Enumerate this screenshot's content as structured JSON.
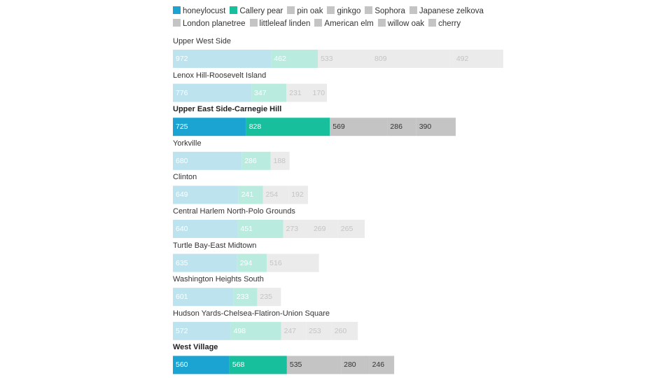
{
  "legend": [
    {
      "name": "honeylocust",
      "color": "#1ba3d1"
    },
    {
      "name": "Callery pear",
      "color": "#17bf9c"
    },
    {
      "name": "pin oak",
      "color": "#c4c4c4"
    },
    {
      "name": "ginkgo",
      "color": "#c4c4c4"
    },
    {
      "name": "Sophora",
      "color": "#c4c4c4"
    },
    {
      "name": "Japanese zelkova",
      "color": "#c4c4c4"
    },
    {
      "name": "London planetree",
      "color": "#c4c4c4"
    },
    {
      "name": "littleleaf linden",
      "color": "#c4c4c4"
    },
    {
      "name": "American elm",
      "color": "#c4c4c4"
    },
    {
      "name": "willow oak",
      "color": "#c4c4c4"
    },
    {
      "name": "cherry",
      "color": "#c4c4c4"
    }
  ],
  "colors": {
    "first_highlight": "#1ba3d1",
    "second_highlight": "#17bf9c",
    "other_highlight": "#c4c4c4",
    "first_faded": "#bde3ef",
    "second_faded": "#b9ecdf",
    "other_faded": "#ebebeb"
  },
  "chart_data": {
    "type": "bar",
    "orientation": "horizontal",
    "stacked": true,
    "title": "",
    "xlabel": "",
    "ylabel": "",
    "rows": [
      {
        "name": "Upper West Side",
        "highlighted": false,
        "values": [
          972,
          462,
          533,
          809,
          492
        ]
      },
      {
        "name": "Lenox Hill-Roosevelt Island",
        "highlighted": false,
        "values": [
          776,
          347,
          231,
          170
        ]
      },
      {
        "name": "Upper East Side-Carnegie Hill",
        "highlighted": true,
        "values": [
          725,
          828,
          569,
          286,
          390
        ]
      },
      {
        "name": "Yorkville",
        "highlighted": false,
        "values": [
          680,
          286,
          188
        ]
      },
      {
        "name": "Clinton",
        "highlighted": false,
        "values": [
          649,
          241,
          254,
          192
        ]
      },
      {
        "name": "Central Harlem North-Polo Grounds",
        "highlighted": false,
        "values": [
          640,
          451,
          273,
          269,
          265
        ]
      },
      {
        "name": "Turtle Bay-East Midtown",
        "highlighted": false,
        "values": [
          635,
          294,
          516
        ]
      },
      {
        "name": "Washington Heights South",
        "highlighted": false,
        "values": [
          601,
          233,
          235
        ]
      },
      {
        "name": "Hudson Yards-Chelsea-Flatiron-Union Square",
        "highlighted": false,
        "values": [
          572,
          498,
          247,
          253,
          260
        ]
      },
      {
        "name": "West Village",
        "highlighted": true,
        "values": [
          560,
          568,
          535,
          280,
          246
        ]
      }
    ]
  }
}
